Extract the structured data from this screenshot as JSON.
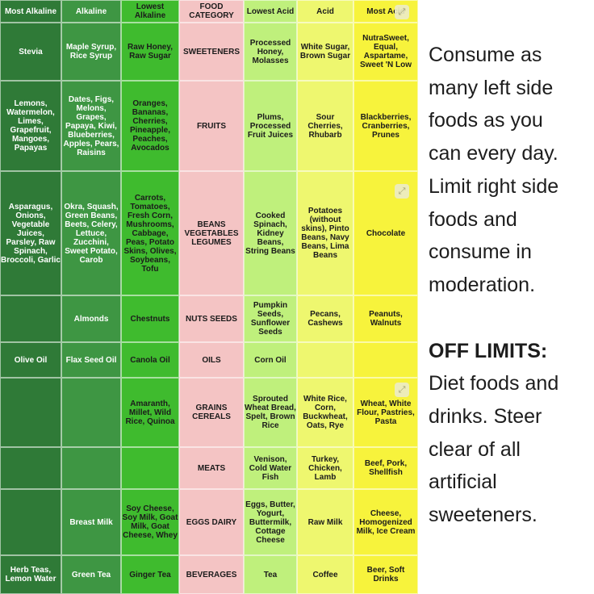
{
  "table": {
    "headers": [
      "Most Alkaline",
      "Alkaline",
      "Lowest Alkaline",
      "FOOD CATEGORY",
      "Lowest Acid",
      "Acid",
      "Most Acid"
    ],
    "rows": [
      [
        "Stevia",
        "Maple Syrup, Rice Syrup",
        "Raw Honey, Raw Sugar",
        "SWEETENERS",
        "Processed Honey, Molasses",
        "White Sugar, Brown Sugar",
        "NutraSweet, Equal, Aspartame, Sweet 'N Low"
      ],
      [
        "Lemons, Watermelon, Limes, Grapefruit, Mangoes, Papayas",
        "Dates, Figs, Melons, Grapes, Papaya, Kiwi, Blueberries, Apples, Pears, Raisins",
        "Oranges, Bananas, Cherries, Pineapple, Peaches, Avocados",
        "FRUITS",
        "Plums, Processed Fruit Juices",
        "Sour Cherries, Rhubarb",
        "Blackberries, Cranberries, Prunes"
      ],
      [
        "Asparagus, Onions, Vegetable Juices, Parsley, Raw Spinach, Broccoli, Garlic",
        "Okra, Squash, Green Beans, Beets, Celery, Lettuce, Zucchini, Sweet Potato, Carob",
        "Carrots, Tomatoes, Fresh Corn, Mushrooms, Cabbage, Peas, Potato Skins, Olives, Soybeans, Tofu",
        "BEANS VEGETABLES LEGUMES",
        "Cooked Spinach, Kidney Beans, String Beans",
        "Potatoes (without skins), Pinto Beans, Navy Beans, Lima Beans",
        "Chocolate"
      ],
      [
        "",
        "Almonds",
        "Chestnuts",
        "NUTS SEEDS",
        "Pumpkin Seeds, Sunflower Seeds",
        "Pecans, Cashews",
        "Peanuts, Walnuts"
      ],
      [
        "Olive Oil",
        "Flax Seed Oil",
        "Canola Oil",
        "OILS",
        "Corn Oil",
        "",
        ""
      ],
      [
        "",
        "",
        "Amaranth, Millet, Wild Rice, Quinoa",
        "GRAINS CEREALS",
        "Sprouted Wheat Bread, Spelt, Brown Rice",
        "White Rice, Corn, Buckwheat, Oats, Rye",
        "Wheat, White Flour, Pastries, Pasta"
      ],
      [
        "",
        "",
        "",
        "MEATS",
        "Venison, Cold Water Fish",
        "Turkey, Chicken, Lamb",
        "Beef, Pork, Shellfish"
      ],
      [
        "",
        "Breast Milk",
        "Soy Cheese, Soy Milk, Goat Milk, Goat Cheese, Whey",
        "EGGS DAIRY",
        "Eggs, Butter, Yogurt, Buttermilk, Cottage Cheese",
        "Raw Milk",
        "Cheese, Homogenized Milk, Ice Cream"
      ],
      [
        "Herb Teas, Lemon Water",
        "Green Tea",
        "Ginger Tea",
        "BEVERAGES",
        "Tea",
        "Coffee",
        "Beer, Soft Drinks"
      ]
    ]
  },
  "sidebar": {
    "line1": "Consume as",
    "line2": "many left side",
    "line3": "foods as you",
    "line4": "can every day.",
    "line5": "Limit right side",
    "line6": "foods and",
    "line7": "consume in",
    "line8": "moderation.",
    "off_title": "OFF LIMITS:",
    "line9": "Diet foods and",
    "line10": "drinks. Steer",
    "line11": "clear of all",
    "line12": "artificial",
    "line13": "sweeteners."
  },
  "icons": [
    "zoom-icon"
  ]
}
